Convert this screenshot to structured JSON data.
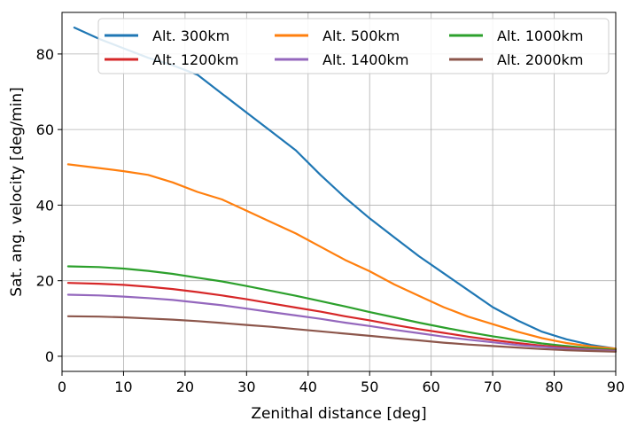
{
  "chart_data": {
    "type": "line",
    "title": "",
    "xlabel": "Zenithal distance [deg]",
    "ylabel": "Sat. ang. velocity [deg/min]",
    "xlim": [
      0,
      90
    ],
    "ylim": [
      -4,
      91
    ],
    "xticks": [
      0,
      10,
      20,
      30,
      40,
      50,
      60,
      70,
      80,
      90
    ],
    "yticks": [
      0,
      20,
      40,
      60,
      80
    ],
    "grid": true,
    "legend_position": "top-right",
    "legend_columns": 3,
    "series": [
      {
        "name": "Alt. 300km",
        "color": "#1f77b4",
        "x": [
          2,
          6,
          10,
          14,
          18,
          22,
          26,
          30,
          34,
          38,
          42,
          46,
          50,
          54,
          58,
          62,
          66,
          70,
          74,
          78,
          82,
          86,
          90
        ],
        "y": [
          87.0,
          84.0,
          81.5,
          79.0,
          77.0,
          74.5,
          69.5,
          64.5,
          59.5,
          54.5,
          48.0,
          42.0,
          36.5,
          31.5,
          26.5,
          22.0,
          17.5,
          13.0,
          9.5,
          6.5,
          4.5,
          3.0,
          2.0
        ]
      },
      {
        "name": "Alt. 500km",
        "color": "#ff7f0e",
        "x": [
          1,
          6,
          10,
          14,
          18,
          22,
          26,
          30,
          34,
          38,
          42,
          46,
          50,
          54,
          58,
          62,
          66,
          70,
          74,
          78,
          82,
          86,
          90
        ],
        "y": [
          50.8,
          49.8,
          49.0,
          48.0,
          46.0,
          43.5,
          41.5,
          38.5,
          35.5,
          32.5,
          29.0,
          25.5,
          22.5,
          19.0,
          16.0,
          13.0,
          10.5,
          8.5,
          6.5,
          4.8,
          3.5,
          2.6,
          2.0
        ]
      },
      {
        "name": "Alt. 1000km",
        "color": "#2ca02c",
        "x": [
          1,
          6,
          10,
          14,
          18,
          22,
          26,
          30,
          34,
          38,
          42,
          46,
          50,
          54,
          58,
          62,
          66,
          70,
          74,
          78,
          82,
          86,
          90
        ],
        "y": [
          23.8,
          23.6,
          23.2,
          22.6,
          21.8,
          20.8,
          19.8,
          18.6,
          17.3,
          16.0,
          14.6,
          13.2,
          11.7,
          10.3,
          8.9,
          7.6,
          6.4,
          5.3,
          4.3,
          3.4,
          2.7,
          2.1,
          1.7
        ]
      },
      {
        "name": "Alt. 1200km",
        "color": "#d62728",
        "x": [
          1,
          6,
          10,
          14,
          18,
          22,
          26,
          30,
          34,
          38,
          42,
          46,
          50,
          54,
          58,
          62,
          66,
          70,
          74,
          78,
          82,
          86,
          90
        ],
        "y": [
          19.4,
          19.2,
          18.9,
          18.4,
          17.8,
          17.0,
          16.1,
          15.1,
          14.0,
          12.9,
          11.8,
          10.6,
          9.5,
          8.3,
          7.2,
          6.2,
          5.2,
          4.3,
          3.5,
          2.8,
          2.3,
          1.8,
          1.5
        ]
      },
      {
        "name": "Alt. 1400km",
        "color": "#9467bd",
        "x": [
          1,
          6,
          10,
          14,
          18,
          22,
          26,
          30,
          34,
          38,
          42,
          46,
          50,
          54,
          58,
          62,
          66,
          70,
          74,
          78,
          82,
          86,
          90
        ],
        "y": [
          16.3,
          16.1,
          15.8,
          15.4,
          14.9,
          14.2,
          13.5,
          12.6,
          11.7,
          10.8,
          9.9,
          8.9,
          8.0,
          7.0,
          6.1,
          5.2,
          4.4,
          3.7,
          3.0,
          2.5,
          2.0,
          1.7,
          1.4
        ]
      },
      {
        "name": "Alt. 2000km",
        "color": "#8c564b",
        "x": [
          1,
          6,
          10,
          14,
          18,
          22,
          26,
          30,
          34,
          38,
          42,
          46,
          50,
          54,
          58,
          62,
          66,
          70,
          74,
          78,
          82,
          86,
          90
        ],
        "y": [
          10.6,
          10.5,
          10.3,
          10.0,
          9.7,
          9.3,
          8.8,
          8.3,
          7.8,
          7.2,
          6.6,
          6.0,
          5.4,
          4.8,
          4.2,
          3.6,
          3.1,
          2.7,
          2.3,
          1.9,
          1.6,
          1.4,
          1.2
        ]
      }
    ]
  }
}
